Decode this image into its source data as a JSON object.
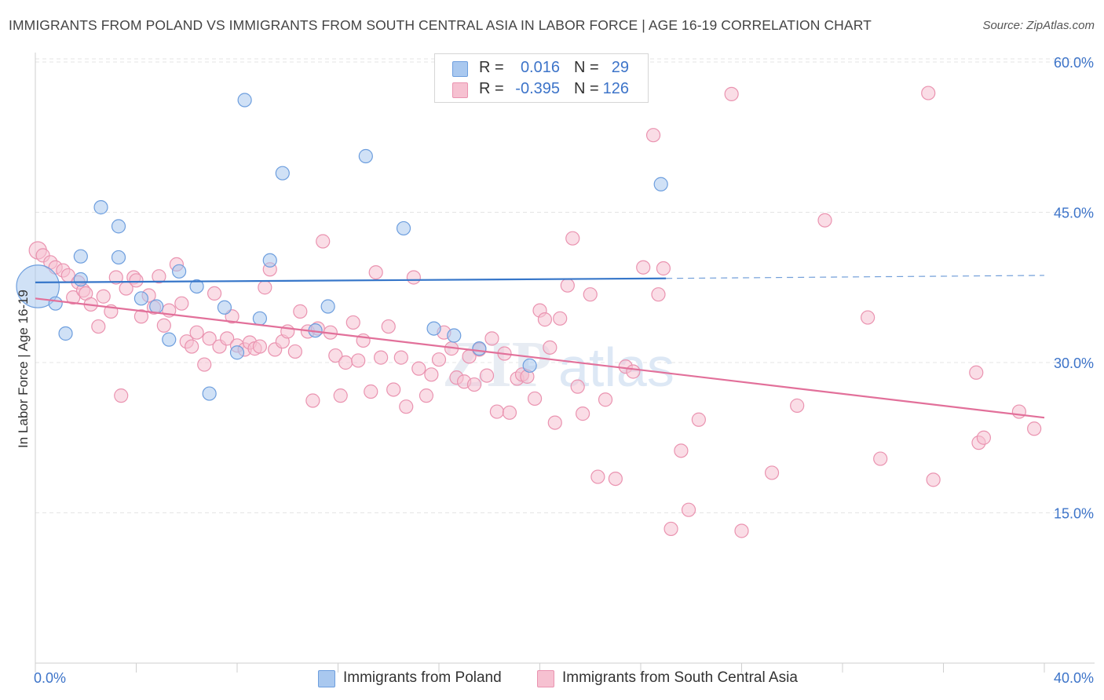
{
  "header": {
    "title": "IMMIGRANTS FROM POLAND VS IMMIGRANTS FROM SOUTH CENTRAL ASIA IN LABOR FORCE | AGE 16-19 CORRELATION CHART",
    "source": "Source: ZipAtlas.com"
  },
  "legend": {
    "row1": {
      "r_label": "R =",
      "r_value": "0.016",
      "n_label": "N =",
      "n_value": "29"
    },
    "row2": {
      "r_label": "R =",
      "r_value": "-0.395",
      "n_label": "N =",
      "n_value": "126"
    }
  },
  "bottom_legend": {
    "poland": "Immigrants from Poland",
    "sca": "Immigrants from South Central Asia"
  },
  "watermark": {
    "zip": "ZIP",
    "atlas": "atlas"
  },
  "colors": {
    "poland_fill": "#a9c8ef",
    "poland_stroke": "#6d9ede",
    "poland_line": "#3676c9",
    "sca_fill": "#f6c1d1",
    "sca_stroke": "#ea93b0",
    "sca_line": "#e2709a",
    "axis_text": "#3d74c9",
    "grid": "#e4e4e4"
  },
  "chart_data": {
    "type": "scatter",
    "title": "IMMIGRANTS FROM POLAND VS IMMIGRANTS FROM SOUTH CENTRAL ASIA IN LABOR FORCE | AGE 16-19 CORRELATION CHART",
    "xlabel": "",
    "ylabel": "In Labor Force | Age 16-19",
    "xlim": [
      0,
      40
    ],
    "ylim": [
      0,
      60
    ],
    "x_tick_labels": [
      {
        "v": 0,
        "label": "0.0%"
      },
      {
        "v": 40,
        "label": "40.0%"
      }
    ],
    "y_tick_labels": [
      {
        "v": 15,
        "label": "15.0%"
      },
      {
        "v": 30,
        "label": "30.0%"
      },
      {
        "v": 45,
        "label": "45.0%"
      },
      {
        "v": 60,
        "label": "60.0%"
      }
    ],
    "grid": true,
    "legend_position": "top-center",
    "series": [
      {
        "name": "Immigrants from Poland",
        "r": 0.016,
        "n": 29,
        "trend": {
          "x0": 0,
          "y0": 38.0,
          "x1": 25,
          "y1": 38.4,
          "dash_to_x": 40,
          "dash_to_y": 38.7
        },
        "points": [
          [
            0.1,
            37.6,
            3.2
          ],
          [
            0.8,
            35.9,
            1
          ],
          [
            1.2,
            32.9,
            1
          ],
          [
            1.8,
            40.6,
            1
          ],
          [
            2.6,
            45.5,
            1
          ],
          [
            3.3,
            43.6,
            1
          ],
          [
            3.3,
            40.5,
            1
          ],
          [
            4.2,
            36.4,
            1
          ],
          [
            4.8,
            35.6,
            1
          ],
          [
            5.3,
            32.3,
            1
          ],
          [
            5.7,
            39.1,
            1
          ],
          [
            6.4,
            37.6,
            1
          ],
          [
            6.9,
            26.9,
            1
          ],
          [
            7.5,
            35.5,
            1
          ],
          [
            8.0,
            31.0,
            1
          ],
          [
            8.3,
            56.2,
            1
          ],
          [
            8.9,
            34.4,
            1
          ],
          [
            9.3,
            40.2,
            1
          ],
          [
            9.8,
            48.9,
            1
          ],
          [
            11.1,
            33.2,
            1
          ],
          [
            11.6,
            35.6,
            1
          ],
          [
            13.1,
            50.6,
            1
          ],
          [
            14.6,
            43.4,
            1
          ],
          [
            15.8,
            33.4,
            1
          ],
          [
            16.6,
            32.7,
            1
          ],
          [
            17.6,
            31.4,
            1
          ],
          [
            19.6,
            29.7,
            1
          ],
          [
            24.8,
            47.8,
            1
          ],
          [
            1.8,
            38.3,
            1
          ]
        ]
      },
      {
        "name": "Immigrants from South Central Asia",
        "r": -0.395,
        "n": 126,
        "trend": {
          "x0": 0,
          "y0": 36.4,
          "x1": 40,
          "y1": 24.5
        },
        "points": [
          [
            0.1,
            41.2,
            1.3
          ],
          [
            0.3,
            40.7,
            1
          ],
          [
            0.6,
            40.0,
            1
          ],
          [
            0.8,
            39.5,
            1
          ],
          [
            1.1,
            39.2,
            1
          ],
          [
            1.3,
            38.7,
            1
          ],
          [
            1.5,
            36.5,
            1
          ],
          [
            1.7,
            38.0,
            1
          ],
          [
            1.9,
            37.2,
            1
          ],
          [
            2.0,
            36.9,
            1
          ],
          [
            2.2,
            35.8,
            1
          ],
          [
            2.5,
            33.6,
            1
          ],
          [
            2.7,
            36.6,
            1
          ],
          [
            3.0,
            35.1,
            1
          ],
          [
            3.2,
            38.5,
            1
          ],
          [
            3.4,
            26.7,
            1
          ],
          [
            3.6,
            37.4,
            1
          ],
          [
            3.9,
            38.5,
            1
          ],
          [
            4.0,
            38.2,
            1
          ],
          [
            4.2,
            34.6,
            1
          ],
          [
            4.5,
            36.7,
            1
          ],
          [
            4.7,
            35.5,
            1
          ],
          [
            4.9,
            38.6,
            1
          ],
          [
            5.1,
            33.7,
            1
          ],
          [
            5.3,
            35.2,
            1
          ],
          [
            5.6,
            39.8,
            1
          ],
          [
            5.8,
            35.9,
            1
          ],
          [
            6.0,
            32.1,
            1
          ],
          [
            6.2,
            31.6,
            1
          ],
          [
            6.4,
            33.0,
            1
          ],
          [
            6.7,
            29.8,
            1
          ],
          [
            6.9,
            32.4,
            1
          ],
          [
            7.1,
            36.9,
            1
          ],
          [
            7.3,
            31.6,
            1
          ],
          [
            7.6,
            32.4,
            1
          ],
          [
            7.8,
            34.6,
            1
          ],
          [
            8.0,
            31.7,
            1
          ],
          [
            8.3,
            31.3,
            1
          ],
          [
            8.5,
            32.0,
            1
          ],
          [
            8.7,
            31.4,
            1
          ],
          [
            8.9,
            31.6,
            1
          ],
          [
            9.1,
            37.5,
            1
          ],
          [
            9.3,
            39.3,
            1
          ],
          [
            9.5,
            31.3,
            1
          ],
          [
            9.8,
            32.1,
            1
          ],
          [
            10.0,
            33.1,
            1
          ],
          [
            10.3,
            31.1,
            1
          ],
          [
            10.5,
            35.1,
            1
          ],
          [
            10.8,
            33.1,
            1
          ],
          [
            11.0,
            26.2,
            1
          ],
          [
            11.2,
            33.4,
            1
          ],
          [
            11.4,
            42.1,
            1
          ],
          [
            11.7,
            33.0,
            1
          ],
          [
            11.9,
            30.7,
            1
          ],
          [
            12.1,
            26.7,
            1
          ],
          [
            12.3,
            30.0,
            1
          ],
          [
            12.6,
            34.0,
            1
          ],
          [
            12.8,
            30.2,
            1
          ],
          [
            13.0,
            32.2,
            1
          ],
          [
            13.3,
            27.1,
            1
          ],
          [
            13.5,
            39.0,
            1
          ],
          [
            13.7,
            30.5,
            1
          ],
          [
            14.0,
            33.6,
            1
          ],
          [
            14.2,
            27.3,
            1
          ],
          [
            14.5,
            30.5,
            1
          ],
          [
            14.7,
            25.6,
            1
          ],
          [
            15.0,
            38.5,
            1
          ],
          [
            15.2,
            29.4,
            1
          ],
          [
            15.5,
            26.7,
            1
          ],
          [
            15.7,
            28.8,
            1
          ],
          [
            16.0,
            30.3,
            1
          ],
          [
            16.2,
            33.0,
            1
          ],
          [
            16.5,
            31.4,
            1
          ],
          [
            16.7,
            28.5,
            1
          ],
          [
            17.0,
            28.1,
            1
          ],
          [
            17.2,
            30.6,
            1
          ],
          [
            17.4,
            27.8,
            1
          ],
          [
            17.6,
            31.3,
            1
          ],
          [
            17.9,
            28.7,
            1
          ],
          [
            18.1,
            32.4,
            1
          ],
          [
            18.3,
            25.1,
            1
          ],
          [
            18.6,
            30.9,
            1
          ],
          [
            18.8,
            25.0,
            1
          ],
          [
            19.1,
            28.4,
            1
          ],
          [
            19.3,
            28.8,
            1
          ],
          [
            19.5,
            28.6,
            1
          ],
          [
            19.8,
            26.4,
            1
          ],
          [
            20.0,
            35.2,
            1
          ],
          [
            20.2,
            34.3,
            1
          ],
          [
            20.4,
            31.5,
            1
          ],
          [
            20.6,
            24.0,
            1
          ],
          [
            20.8,
            34.4,
            1
          ],
          [
            21.1,
            37.7,
            1
          ],
          [
            21.3,
            42.4,
            1
          ],
          [
            21.5,
            27.6,
            1
          ],
          [
            21.7,
            24.9,
            1
          ],
          [
            22.0,
            36.8,
            1
          ],
          [
            22.3,
            18.6,
            1
          ],
          [
            22.6,
            26.3,
            1
          ],
          [
            23.0,
            18.4,
            1
          ],
          [
            23.4,
            29.6,
            1
          ],
          [
            23.7,
            29.1,
            1
          ],
          [
            24.1,
            39.5,
            1
          ],
          [
            24.5,
            52.7,
            1
          ],
          [
            24.7,
            36.8,
            1
          ],
          [
            24.9,
            39.4,
            1
          ],
          [
            25.2,
            13.4,
            1
          ],
          [
            25.6,
            21.2,
            1
          ],
          [
            25.9,
            15.3,
            1
          ],
          [
            26.3,
            24.3,
            1
          ],
          [
            27.6,
            56.8,
            1
          ],
          [
            28.0,
            13.2,
            1
          ],
          [
            29.2,
            19.0,
            1
          ],
          [
            30.2,
            25.7,
            1
          ],
          [
            31.3,
            44.2,
            1
          ],
          [
            33.0,
            34.5,
            1
          ],
          [
            33.5,
            20.4,
            1
          ],
          [
            35.4,
            56.9,
            1
          ],
          [
            35.6,
            18.3,
            1
          ],
          [
            37.3,
            29.0,
            1
          ],
          [
            37.4,
            22.0,
            1
          ],
          [
            37.6,
            22.5,
            1
          ],
          [
            39.0,
            25.1,
            1
          ],
          [
            39.6,
            23.4,
            1
          ]
        ]
      }
    ]
  }
}
